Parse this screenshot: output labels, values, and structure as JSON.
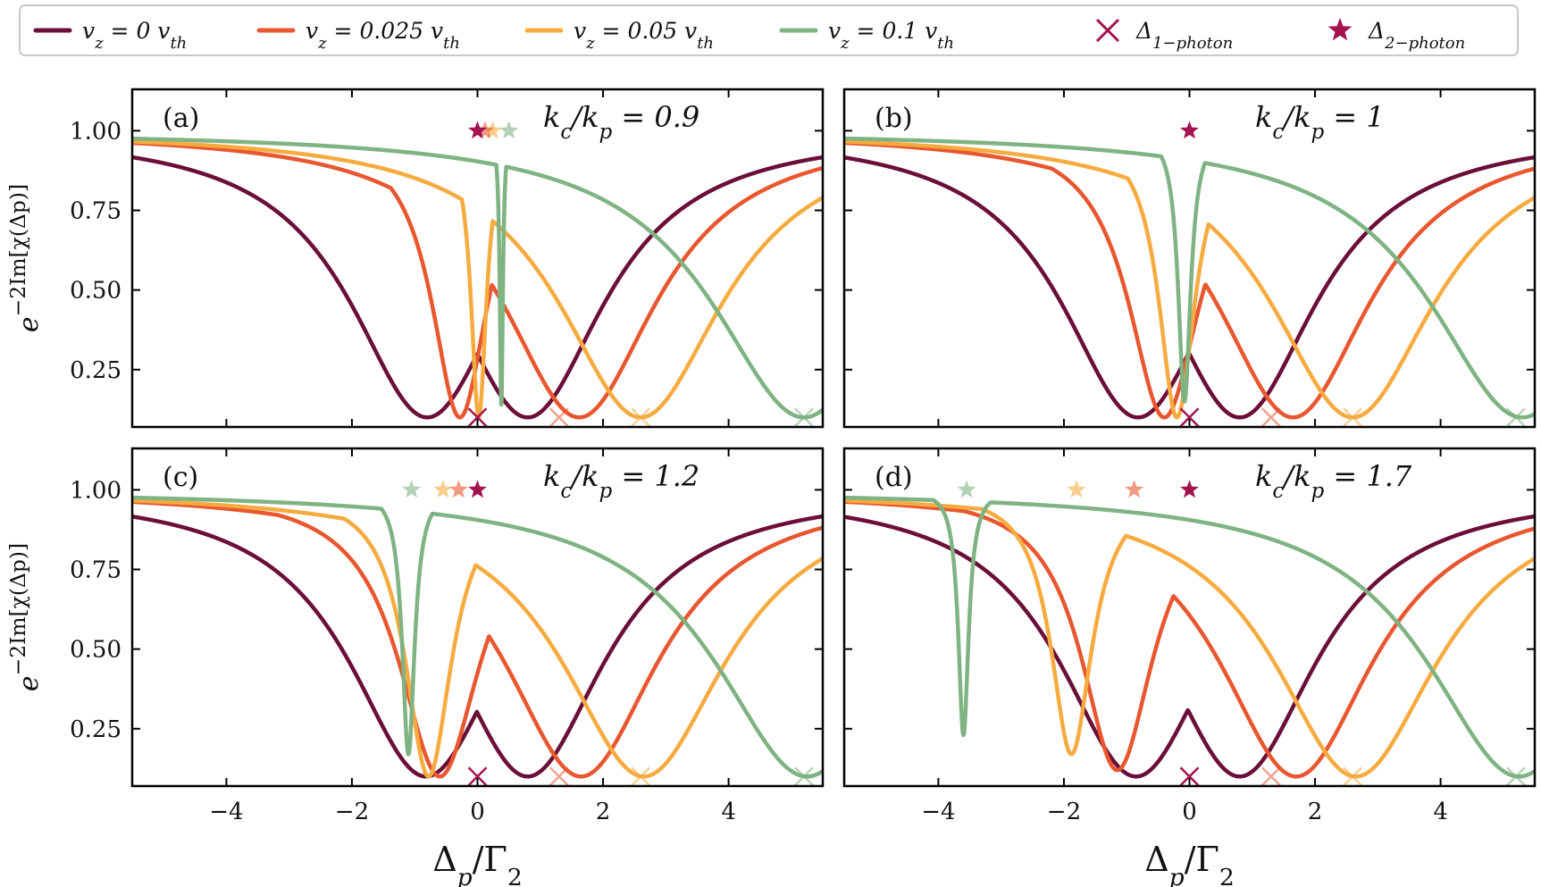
{
  "legend": {
    "placement": "top",
    "entries": [
      {
        "id": "vz0",
        "kind": "line",
        "color": "#6b0f38",
        "label": "v_z = 0 v_th"
      },
      {
        "id": "vz0025",
        "kind": "line",
        "color": "#e8572f",
        "label": "v_z = 0.025 v_th"
      },
      {
        "id": "vz005",
        "kind": "line",
        "color": "#f6ab40",
        "label": "v_z = 0.05 v_th"
      },
      {
        "id": "vz01",
        "kind": "line",
        "color": "#7fb383",
        "label": "v_z = 0.1 v_th"
      },
      {
        "id": "d1",
        "kind": "cross",
        "color": "#a3144f",
        "label": "Δ_1−photon"
      },
      {
        "id": "d2",
        "kind": "star",
        "color": "#a3144f",
        "label": "Δ_2−photon"
      }
    ]
  },
  "labels": {
    "xlabel": "Δp/Γ2",
    "ylabel": "e^−2Im[χ(Δp)]"
  },
  "chart_data": [
    {
      "type": "line",
      "panel": "(a)",
      "annotation": "kc/kp = 0.9",
      "xlim": [
        -5.5,
        5.5
      ],
      "ylim": [
        0.07,
        1.13
      ],
      "xticks": [
        -4,
        -2,
        0,
        2,
        4
      ],
      "yticks": [
        0.25,
        0.5,
        0.75,
        1.0
      ],
      "series": [
        {
          "name": "v_z = 0 v_th",
          "dips": [
            [
              -0.8,
              0.1,
              1.5
            ],
            [
              0.8,
              0.1,
              1.5
            ]
          ]
        },
        {
          "name": "v_z = 0.025 v_th",
          "dips": [
            [
              -0.28,
              0.1,
              0.55
            ],
            [
              1.62,
              0.1,
              1.5
            ]
          ]
        },
        {
          "name": "v_z = 0.05 v_th",
          "dips": [
            [
              0.02,
              0.1,
              0.15
            ],
            [
              2.6,
              0.1,
              1.6
            ]
          ]
        },
        {
          "name": "v_z = 0.1 v_th",
          "dips": [
            [
              0.38,
              0.14,
              0.03
            ],
            [
              5.2,
              0.1,
              1.8
            ]
          ]
        }
      ],
      "one_photon_x": [
        0.0,
        1.3,
        2.6,
        5.2
      ],
      "two_photon": [
        [
          0.0,
          1.0
        ],
        [
          0.12,
          1.0
        ],
        [
          0.24,
          1.0
        ],
        [
          0.5,
          1.0
        ]
      ]
    },
    {
      "type": "line",
      "panel": "(b)",
      "annotation": "kc/kp = 1",
      "xlim": [
        -5.5,
        5.5
      ],
      "ylim": [
        0.07,
        1.13
      ],
      "xticks": [
        -4,
        -2,
        0,
        2,
        4
      ],
      "yticks": [
        0.25,
        0.5,
        0.75,
        1.0
      ],
      "series": [
        {
          "name": "v_z = 0 v_th",
          "dips": [
            [
              -0.82,
              0.1,
              1.5
            ],
            [
              0.8,
              0.1,
              1.5
            ]
          ]
        },
        {
          "name": "v_z = 0.025 v_th",
          "dips": [
            [
              -0.4,
              0.1,
              0.7
            ],
            [
              1.65,
              0.1,
              1.5
            ]
          ]
        },
        {
          "name": "v_z = 0.05 v_th",
          "dips": [
            [
              -0.2,
              0.1,
              0.35
            ],
            [
              2.6,
              0.1,
              1.6
            ]
          ]
        },
        {
          "name": "v_z = 0.1 v_th",
          "dips": [
            [
              -0.08,
              0.15,
              0.12
            ],
            [
              5.3,
              0.1,
              1.8
            ]
          ]
        }
      ],
      "one_photon_x": [
        0.0,
        1.3,
        2.6,
        5.2
      ],
      "two_photon": [
        [
          0.0,
          1.0
        ]
      ]
    },
    {
      "type": "line",
      "panel": "(c)",
      "annotation": "kc/kp = 1.2",
      "xlim": [
        -5.5,
        5.5
      ],
      "ylim": [
        0.07,
        1.13
      ],
      "xticks": [
        -4,
        -2,
        0,
        2,
        4
      ],
      "yticks": [
        0.25,
        0.5,
        0.75,
        1.0
      ],
      "series": [
        {
          "name": "v_z = 0 v_th",
          "dips": [
            [
              -0.82,
              0.1,
              1.5
            ],
            [
              0.8,
              0.1,
              1.5
            ]
          ]
        },
        {
          "name": "v_z = 0.025 v_th",
          "dips": [
            [
              -0.6,
              0.1,
              0.8
            ],
            [
              1.65,
              0.1,
              1.5
            ]
          ]
        },
        {
          "name": "v_z = 0.05 v_th",
          "dips": [
            [
              -0.78,
              0.1,
              0.45
            ],
            [
              2.65,
              0.1,
              1.6
            ]
          ]
        },
        {
          "name": "v_z = 0.1 v_th",
          "dips": [
            [
              -1.1,
              0.17,
              0.12
            ],
            [
              5.25,
              0.1,
              1.8
            ]
          ]
        }
      ],
      "one_photon_x": [
        0.0,
        1.3,
        2.6,
        5.2
      ],
      "two_photon": [
        [
          0.0,
          1.0
        ],
        [
          -0.3,
          1.0
        ],
        [
          -0.55,
          1.0
        ],
        [
          -1.05,
          1.0
        ]
      ]
    },
    {
      "type": "line",
      "panel": "(d)",
      "annotation": "kc/kp = 1.7",
      "xlim": [
        -5.5,
        5.5
      ],
      "ylim": [
        0.07,
        1.13
      ],
      "xticks": [
        -4,
        -2,
        0,
        2,
        4
      ],
      "yticks": [
        0.25,
        0.5,
        0.75,
        1.0
      ],
      "series": [
        {
          "name": "v_z = 0 v_th",
          "dips": [
            [
              -0.85,
              0.1,
              1.5
            ],
            [
              0.8,
              0.1,
              1.5
            ]
          ]
        },
        {
          "name": "v_z = 0.025 v_th",
          "dips": [
            [
              -1.15,
              0.12,
              0.7
            ],
            [
              1.7,
              0.1,
              1.5
            ]
          ]
        },
        {
          "name": "v_z = 0.05 v_th",
          "dips": [
            [
              -1.88,
              0.17,
              0.4
            ],
            [
              2.65,
              0.1,
              1.6
            ]
          ]
        },
        {
          "name": "v_z = 0.1 v_th",
          "dips": [
            [
              -3.6,
              0.23,
              0.1
            ],
            [
              5.25,
              0.1,
              1.8
            ]
          ]
        }
      ],
      "one_photon_x": [
        0.0,
        1.3,
        2.6,
        5.2
      ],
      "two_photon": [
        [
          0.0,
          1.0
        ],
        [
          -0.88,
          1.0
        ],
        [
          -1.8,
          1.0
        ],
        [
          -3.55,
          1.0
        ]
      ]
    }
  ]
}
